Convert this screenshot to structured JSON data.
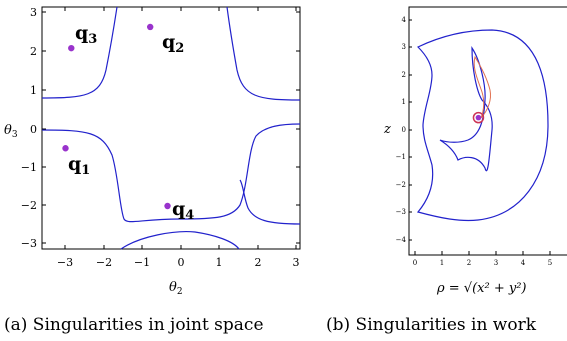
{
  "panels": [
    {
      "id": "a",
      "caption": "(a) Singularities in joint space",
      "xlabel": "θ",
      "xlabel_sub": "2",
      "ylabel": "θ",
      "ylabel_sub": "3",
      "xticks": [
        "−3",
        "−2",
        "−1",
        "0",
        "1",
        "2",
        "3"
      ],
      "yticks": [
        "3",
        "2",
        "1",
        "0",
        "−1",
        "−2",
        "−3"
      ],
      "points": [
        {
          "label": "q",
          "sub": "1",
          "theta2": -3.0,
          "theta3": -0.5
        },
        {
          "label": "q",
          "sub": "2",
          "theta2": -0.8,
          "theta3": 2.65
        },
        {
          "label": "q",
          "sub": "3",
          "theta2": -2.85,
          "theta3": 2.1
        },
        {
          "label": "q",
          "sub": "4",
          "theta2": -0.35,
          "theta3": -2.0
        }
      ]
    },
    {
      "id": "b",
      "caption": "(b) Singularities in work",
      "xlabel": "ρ = √(x² + y²)",
      "ylabel": "z",
      "xticks": [
        "0",
        "1",
        "2",
        "3",
        "4",
        "5"
      ],
      "yticks": [
        "4",
        "3",
        "2",
        "1",
        "0",
        "−1",
        "−2",
        "−3",
        "−4"
      ],
      "marker": {
        "rho": 2.35,
        "z": 0.45
      }
    }
  ],
  "colors": {
    "curve": "#2222cc",
    "point": "#9933cc",
    "curve2": "#e07050"
  }
}
